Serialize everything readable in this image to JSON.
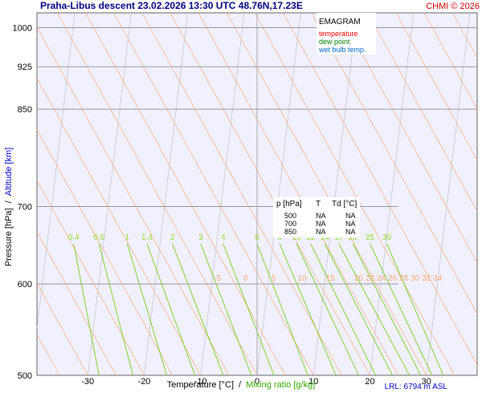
{
  "header": {
    "title": "Praha-Libus   descent   23.02.2026 13:30 UTC   48.76N,17.23E",
    "copyright": "CHMI © 2026"
  },
  "footer": {
    "lrl": "LRL: 6794 m ASL"
  },
  "legend": {
    "title": "EMAGRAM",
    "items": [
      {
        "label": "temperature",
        "color": "#ff0000"
      },
      {
        "label": "dew point",
        "color": "#008000"
      },
      {
        "label": "wet bulb temp.",
        "color": "#0066cc"
      }
    ]
  },
  "table": {
    "headers": [
      "p [hPa]",
      "T",
      "Td [°C]"
    ],
    "rows": [
      [
        "500",
        "NA",
        "NA"
      ],
      [
        "700",
        "NA",
        "NA"
      ],
      [
        "850",
        "NA",
        "NA"
      ]
    ]
  },
  "chart_data": {
    "type": "line",
    "title": "EMAGRAM",
    "x_axis": {
      "label": "Temperature [°C]",
      "label2": "Mixing ratio [g/kg]",
      "separator": "/",
      "range": [
        -39,
        39
      ],
      "ticks": [
        -30,
        -20,
        -10,
        0,
        10,
        20,
        30
      ]
    },
    "y_axis": {
      "label": "Pressure [hPa]",
      "label2": "Altitude [km]",
      "separator": "/",
      "scale": "log",
      "range": [
        1030,
        500
      ],
      "ticks": [
        500,
        600,
        700,
        850,
        925,
        1000
      ]
    },
    "grid": true,
    "legend_position": "top-right",
    "series": [],
    "isotherm_labels": [
      "-5",
      "0",
      "5",
      "10",
      "15",
      "20",
      "22",
      "24",
      "26",
      "28",
      "30",
      "32",
      "34"
    ],
    "mixing_ratio_labels": [
      "0.4",
      "0.6",
      "1",
      "1.4",
      "2",
      "3",
      "4",
      "6",
      "8",
      "10",
      "12",
      "14",
      "17",
      "20",
      "25",
      "30"
    ],
    "colors": {
      "background": "#f0f0ff",
      "isobar": "#999999",
      "isotherm": "#bbbbbb",
      "dry_adiabat": "#ffaa77",
      "mixing_ratio": "#66cc00",
      "mixing_label": "#99dd33",
      "title": "#000080",
      "altitude": "#0000cc",
      "mixing_axis": "#33aa00",
      "lrl": "#0000cc",
      "copyright": "#cc0000"
    }
  }
}
